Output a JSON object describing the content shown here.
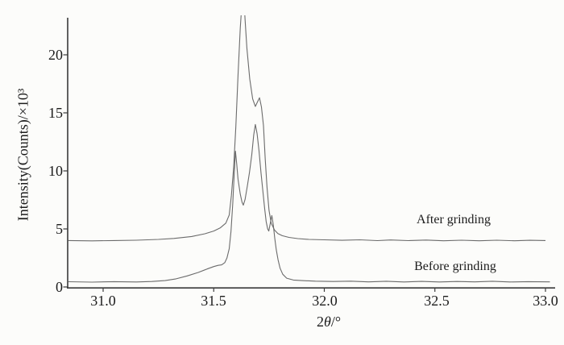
{
  "figure": {
    "background": "#fcfcfa",
    "axis_color": "#3a3a3a",
    "curve_color": "#6b6b6b"
  },
  "chart_data": {
    "type": "line",
    "title": "",
    "xlabel": {
      "prefix": "2",
      "theta": "θ",
      "suffix": "/°"
    },
    "ylabel": "Intensity(Counts)/×10³",
    "xlim": [
      30.843,
      33.04
    ],
    "ylim": [
      0,
      23.4
    ],
    "grid": false,
    "legend_position": "inline-annotations",
    "x_ticks": [
      {
        "value": 31.0,
        "label": "31.0"
      },
      {
        "value": 31.5,
        "label": "31.5"
      },
      {
        "value": 32.0,
        "label": "32.0"
      },
      {
        "value": 32.5,
        "label": "32.5"
      },
      {
        "value": 33.0,
        "label": "33.0"
      }
    ],
    "y_ticks": [
      {
        "value": 0,
        "label": "0"
      },
      {
        "value": 5,
        "label": "5"
      },
      {
        "value": 10,
        "label": "10"
      },
      {
        "value": 15,
        "label": "15"
      },
      {
        "value": 20,
        "label": "20"
      }
    ],
    "annotations": [
      {
        "text": "After grinding"
      },
      {
        "text": "Before grinding"
      }
    ],
    "series": [
      {
        "name": "After grinding",
        "baseline": 4.0,
        "main_peak": {
          "x": 31.63,
          "clipped_above": 23.3
        },
        "shoulder_peak": {
          "x": 31.71,
          "y": 16.3
        },
        "points": [
          [
            30.843,
            4.0
          ],
          [
            30.95,
            3.97
          ],
          [
            31.05,
            4.0
          ],
          [
            31.15,
            4.03
          ],
          [
            31.25,
            4.1
          ],
          [
            31.32,
            4.18
          ],
          [
            31.4,
            4.35
          ],
          [
            31.46,
            4.58
          ],
          [
            31.5,
            4.82
          ],
          [
            31.53,
            5.1
          ],
          [
            31.555,
            5.5
          ],
          [
            31.57,
            6.2
          ],
          [
            31.58,
            7.9
          ],
          [
            31.59,
            10.3
          ],
          [
            31.6,
            13.8
          ],
          [
            31.61,
            18.2
          ],
          [
            31.62,
            22.3
          ],
          [
            31.628,
            24.6
          ],
          [
            31.633,
            25.2
          ],
          [
            31.637,
            24.6
          ],
          [
            31.642,
            23.0
          ],
          [
            31.65,
            20.6
          ],
          [
            31.663,
            17.9
          ],
          [
            31.676,
            16.2
          ],
          [
            31.688,
            15.55
          ],
          [
            31.697,
            15.9
          ],
          [
            31.707,
            16.3
          ],
          [
            31.716,
            15.5
          ],
          [
            31.725,
            13.9
          ],
          [
            31.733,
            11.0
          ],
          [
            31.741,
            8.6
          ],
          [
            31.75,
            6.6
          ],
          [
            31.76,
            5.5
          ],
          [
            31.775,
            4.9
          ],
          [
            31.79,
            4.6
          ],
          [
            31.81,
            4.42
          ],
          [
            31.84,
            4.27
          ],
          [
            31.88,
            4.17
          ],
          [
            31.93,
            4.1
          ],
          [
            32.0,
            4.06
          ],
          [
            32.08,
            4.02
          ],
          [
            32.16,
            4.06
          ],
          [
            32.24,
            3.99
          ],
          [
            32.3,
            4.05
          ],
          [
            32.38,
            3.99
          ],
          [
            32.46,
            4.04
          ],
          [
            32.54,
            3.98
          ],
          [
            32.62,
            4.03
          ],
          [
            32.7,
            3.98
          ],
          [
            32.78,
            4.03
          ],
          [
            32.86,
            3.98
          ],
          [
            32.93,
            4.02
          ],
          [
            33.0,
            4.0
          ]
        ]
      },
      {
        "name": "Before grinding",
        "baseline": 0.45,
        "peak1": {
          "x": 31.598,
          "y": 11.7
        },
        "peak2": {
          "x": 31.688,
          "y": 14.0
        },
        "points": [
          [
            30.843,
            0.45
          ],
          [
            30.95,
            0.42
          ],
          [
            31.05,
            0.46
          ],
          [
            31.15,
            0.43
          ],
          [
            31.22,
            0.47
          ],
          [
            31.28,
            0.55
          ],
          [
            31.33,
            0.7
          ],
          [
            31.38,
            0.95
          ],
          [
            31.43,
            1.25
          ],
          [
            31.47,
            1.55
          ],
          [
            31.5,
            1.76
          ],
          [
            31.52,
            1.86
          ],
          [
            31.536,
            1.9
          ],
          [
            31.55,
            2.1
          ],
          [
            31.56,
            2.5
          ],
          [
            31.57,
            3.3
          ],
          [
            31.578,
            4.8
          ],
          [
            31.586,
            7.2
          ],
          [
            31.592,
            9.5
          ],
          [
            31.598,
            11.7
          ],
          [
            31.604,
            10.6
          ],
          [
            31.61,
            9.3
          ],
          [
            31.62,
            8.0
          ],
          [
            31.628,
            7.3
          ],
          [
            31.634,
            7.05
          ],
          [
            31.642,
            7.55
          ],
          [
            31.652,
            8.7
          ],
          [
            31.662,
            9.9
          ],
          [
            31.672,
            11.4
          ],
          [
            31.681,
            13.1
          ],
          [
            31.688,
            14.0
          ],
          [
            31.696,
            13.2
          ],
          [
            31.705,
            11.7
          ],
          [
            31.714,
            9.8
          ],
          [
            31.722,
            8.3
          ],
          [
            31.73,
            6.8
          ],
          [
            31.737,
            5.65
          ],
          [
            31.744,
            5.0
          ],
          [
            31.749,
            4.82
          ],
          [
            31.757,
            5.6
          ],
          [
            31.763,
            6.15
          ],
          [
            31.769,
            5.4
          ],
          [
            31.776,
            4.2
          ],
          [
            31.783,
            3.2
          ],
          [
            31.791,
            2.35
          ],
          [
            31.8,
            1.62
          ],
          [
            31.812,
            1.1
          ],
          [
            31.83,
            0.76
          ],
          [
            31.86,
            0.6
          ],
          [
            31.9,
            0.55
          ],
          [
            31.96,
            0.5
          ],
          [
            32.04,
            0.47
          ],
          [
            32.12,
            0.5
          ],
          [
            32.2,
            0.44
          ],
          [
            32.28,
            0.49
          ],
          [
            32.36,
            0.43
          ],
          [
            32.44,
            0.48
          ],
          [
            32.52,
            0.43
          ],
          [
            32.6,
            0.47
          ],
          [
            32.68,
            0.44
          ],
          [
            32.76,
            0.49
          ],
          [
            32.84,
            0.43
          ],
          [
            32.92,
            0.46
          ],
          [
            33.02,
            0.44
          ]
        ]
      }
    ]
  }
}
